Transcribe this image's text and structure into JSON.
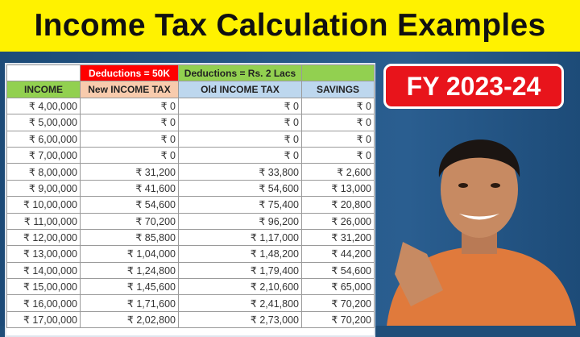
{
  "title": "Income Tax Calculation Examples",
  "badge": "FY 2023-24",
  "table": {
    "top_headers": {
      "new": "Deductions = 50K",
      "old": "Deductions = Rs. 2 Lacs"
    },
    "columns": [
      "INCOME",
      "New INCOME TAX",
      "Old INCOME TAX",
      "SAVINGS"
    ],
    "rows": [
      [
        "₹ 4,00,000",
        "₹ 0",
        "₹ 0",
        "₹ 0"
      ],
      [
        "₹ 5,00,000",
        "₹ 0",
        "₹ 0",
        "₹ 0"
      ],
      [
        "₹ 6,00,000",
        "₹ 0",
        "₹ 0",
        "₹ 0"
      ],
      [
        "₹ 7,00,000",
        "₹ 0",
        "₹ 0",
        "₹ 0"
      ],
      [
        "₹ 8,00,000",
        "₹ 31,200",
        "₹ 33,800",
        "₹ 2,600"
      ],
      [
        "₹ 9,00,000",
        "₹ 41,600",
        "₹ 54,600",
        "₹ 13,000"
      ],
      [
        "₹ 10,00,000",
        "₹ 54,600",
        "₹ 75,400",
        "₹ 20,800"
      ],
      [
        "₹ 11,00,000",
        "₹ 70,200",
        "₹ 96,200",
        "₹ 26,000"
      ],
      [
        "₹ 12,00,000",
        "₹ 85,800",
        "₹ 1,17,000",
        "₹ 31,200"
      ],
      [
        "₹ 13,00,000",
        "₹ 1,04,000",
        "₹ 1,48,200",
        "₹ 44,200"
      ],
      [
        "₹ 14,00,000",
        "₹ 1,24,800",
        "₹ 1,79,400",
        "₹ 54,600"
      ],
      [
        "₹ 15,00,000",
        "₹ 1,45,600",
        "₹ 2,10,600",
        "₹ 65,000"
      ],
      [
        "₹ 16,00,000",
        "₹ 1,71,600",
        "₹ 2,41,800",
        "₹ 70,200"
      ],
      [
        "₹ 17,00,000",
        "₹ 2,02,800",
        "₹ 2,73,000",
        "₹ 70,200"
      ]
    ]
  },
  "colors": {
    "title_band": "#fff200",
    "background": "#1f4e79",
    "badge": "#e8141b",
    "new_deduction": "#ff0000",
    "old_deduction": "#92d050",
    "income_header": "#92d050",
    "new_header": "#f8cbad",
    "old_header": "#bdd7ee"
  }
}
